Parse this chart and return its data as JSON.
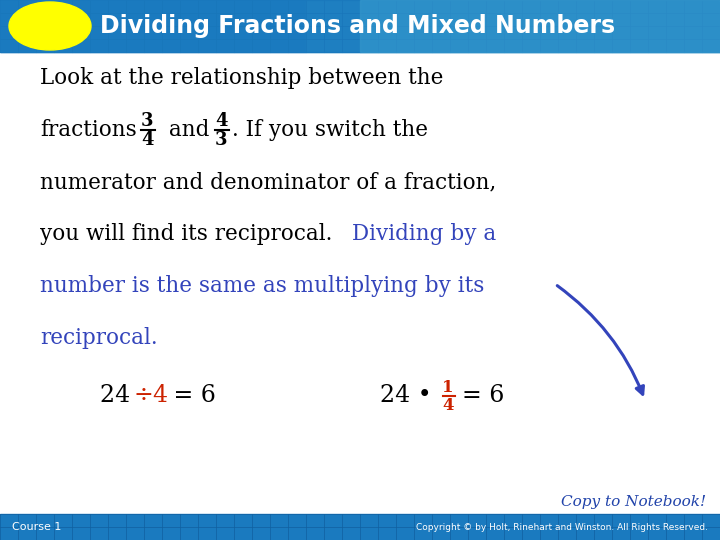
{
  "title": "Dividing Fractions and Mixed Numbers",
  "title_bg_color": "#1a7abf",
  "title_bg_right": "#3a9fd0",
  "title_text_color": "#ffffff",
  "title_badge_color": "#ffff00",
  "body_bg_color": "#ffffff",
  "body_text_color": "#000000",
  "blue_text_color": "#3344bb",
  "red_text_color": "#cc2200",
  "footer_bg_color": "#1a7abf",
  "footer_text_color": "#ffffff",
  "footer_left": "Course 1",
  "footer_right": "Copyright © by Holt, Rinehart and Winston. All Rights Reserved.",
  "copy_text": "Copy to Notebook!",
  "copy_color": "#2244aa"
}
